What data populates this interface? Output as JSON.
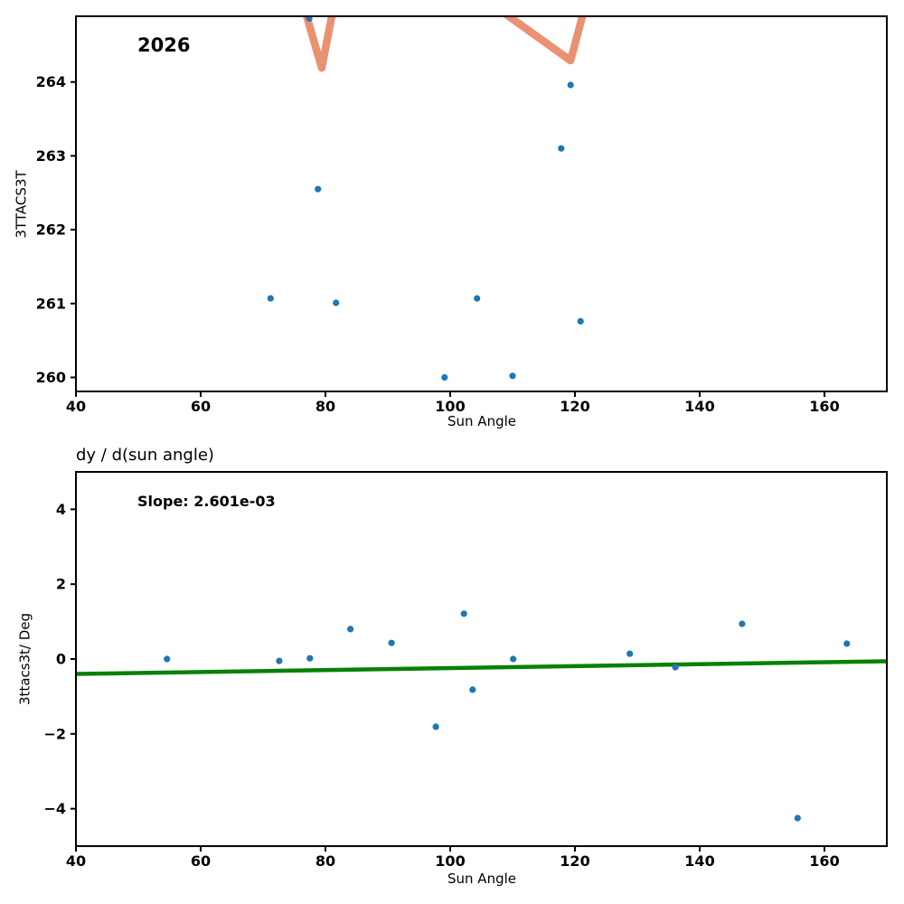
{
  "colors": {
    "scatter_point": "#1f77b4",
    "model_line": "#ea9172",
    "fit_line": "#088008",
    "axis": "#000000",
    "background": "#ffffff"
  },
  "chart_data": [
    {
      "type": "scatter",
      "annotation": "2026",
      "xlabel": "Sun Angle",
      "ylabel": "3TTACS3T",
      "xlim": [
        40,
        170
      ],
      "ylim": [
        259.81,
        264.89
      ],
      "xticks": [
        40,
        60,
        80,
        100,
        120,
        140,
        160
      ],
      "yticks": [
        260,
        261,
        262,
        263,
        264
      ],
      "points": [
        [
          71.2,
          261.07
        ],
        [
          77.4,
          264.86
        ],
        [
          78.8,
          262.55
        ],
        [
          81.7,
          261.01
        ],
        [
          99.1,
          260.0
        ],
        [
          104.3,
          261.07
        ],
        [
          110.0,
          260.02
        ],
        [
          117.8,
          263.1
        ],
        [
          119.3,
          263.96
        ],
        [
          120.9,
          260.76
        ]
      ],
      "model_line_segments": [
        [
          [
            74.9,
            265.5
          ],
          [
            79.4,
            264.19
          ],
          [
            82.4,
            265.5
          ]
        ],
        [
          [
            99.3,
            265.5
          ],
          [
            119.3,
            264.29
          ],
          [
            123.1,
            265.5
          ]
        ]
      ]
    },
    {
      "type": "scatter",
      "title": "dy / d(sun angle)",
      "annotation": "Slope: 2.601e-03",
      "xlabel": "Sun Angle",
      "ylabel": "3ttacs3t/ Deg",
      "xlim": [
        40,
        170
      ],
      "ylim": [
        -5,
        5
      ],
      "xticks": [
        40,
        60,
        80,
        100,
        120,
        140,
        160
      ],
      "yticks": [
        -4,
        -2,
        0,
        2,
        4
      ],
      "points": [
        [
          54.6,
          0.0
        ],
        [
          72.6,
          -0.05
        ],
        [
          77.5,
          0.02
        ],
        [
          84.0,
          0.8
        ],
        [
          90.6,
          0.43
        ],
        [
          97.7,
          -1.81
        ],
        [
          102.2,
          1.21
        ],
        [
          103.6,
          -0.82
        ],
        [
          110.1,
          0.0
        ],
        [
          128.8,
          0.14
        ],
        [
          136.1,
          -0.22
        ],
        [
          146.8,
          0.94
        ],
        [
          155.7,
          -4.25
        ],
        [
          163.6,
          0.41
        ]
      ],
      "fit_line": {
        "slope_value": 0.002601,
        "x": [
          40,
          170
        ],
        "y": [
          -0.4,
          -0.06
        ]
      }
    }
  ]
}
